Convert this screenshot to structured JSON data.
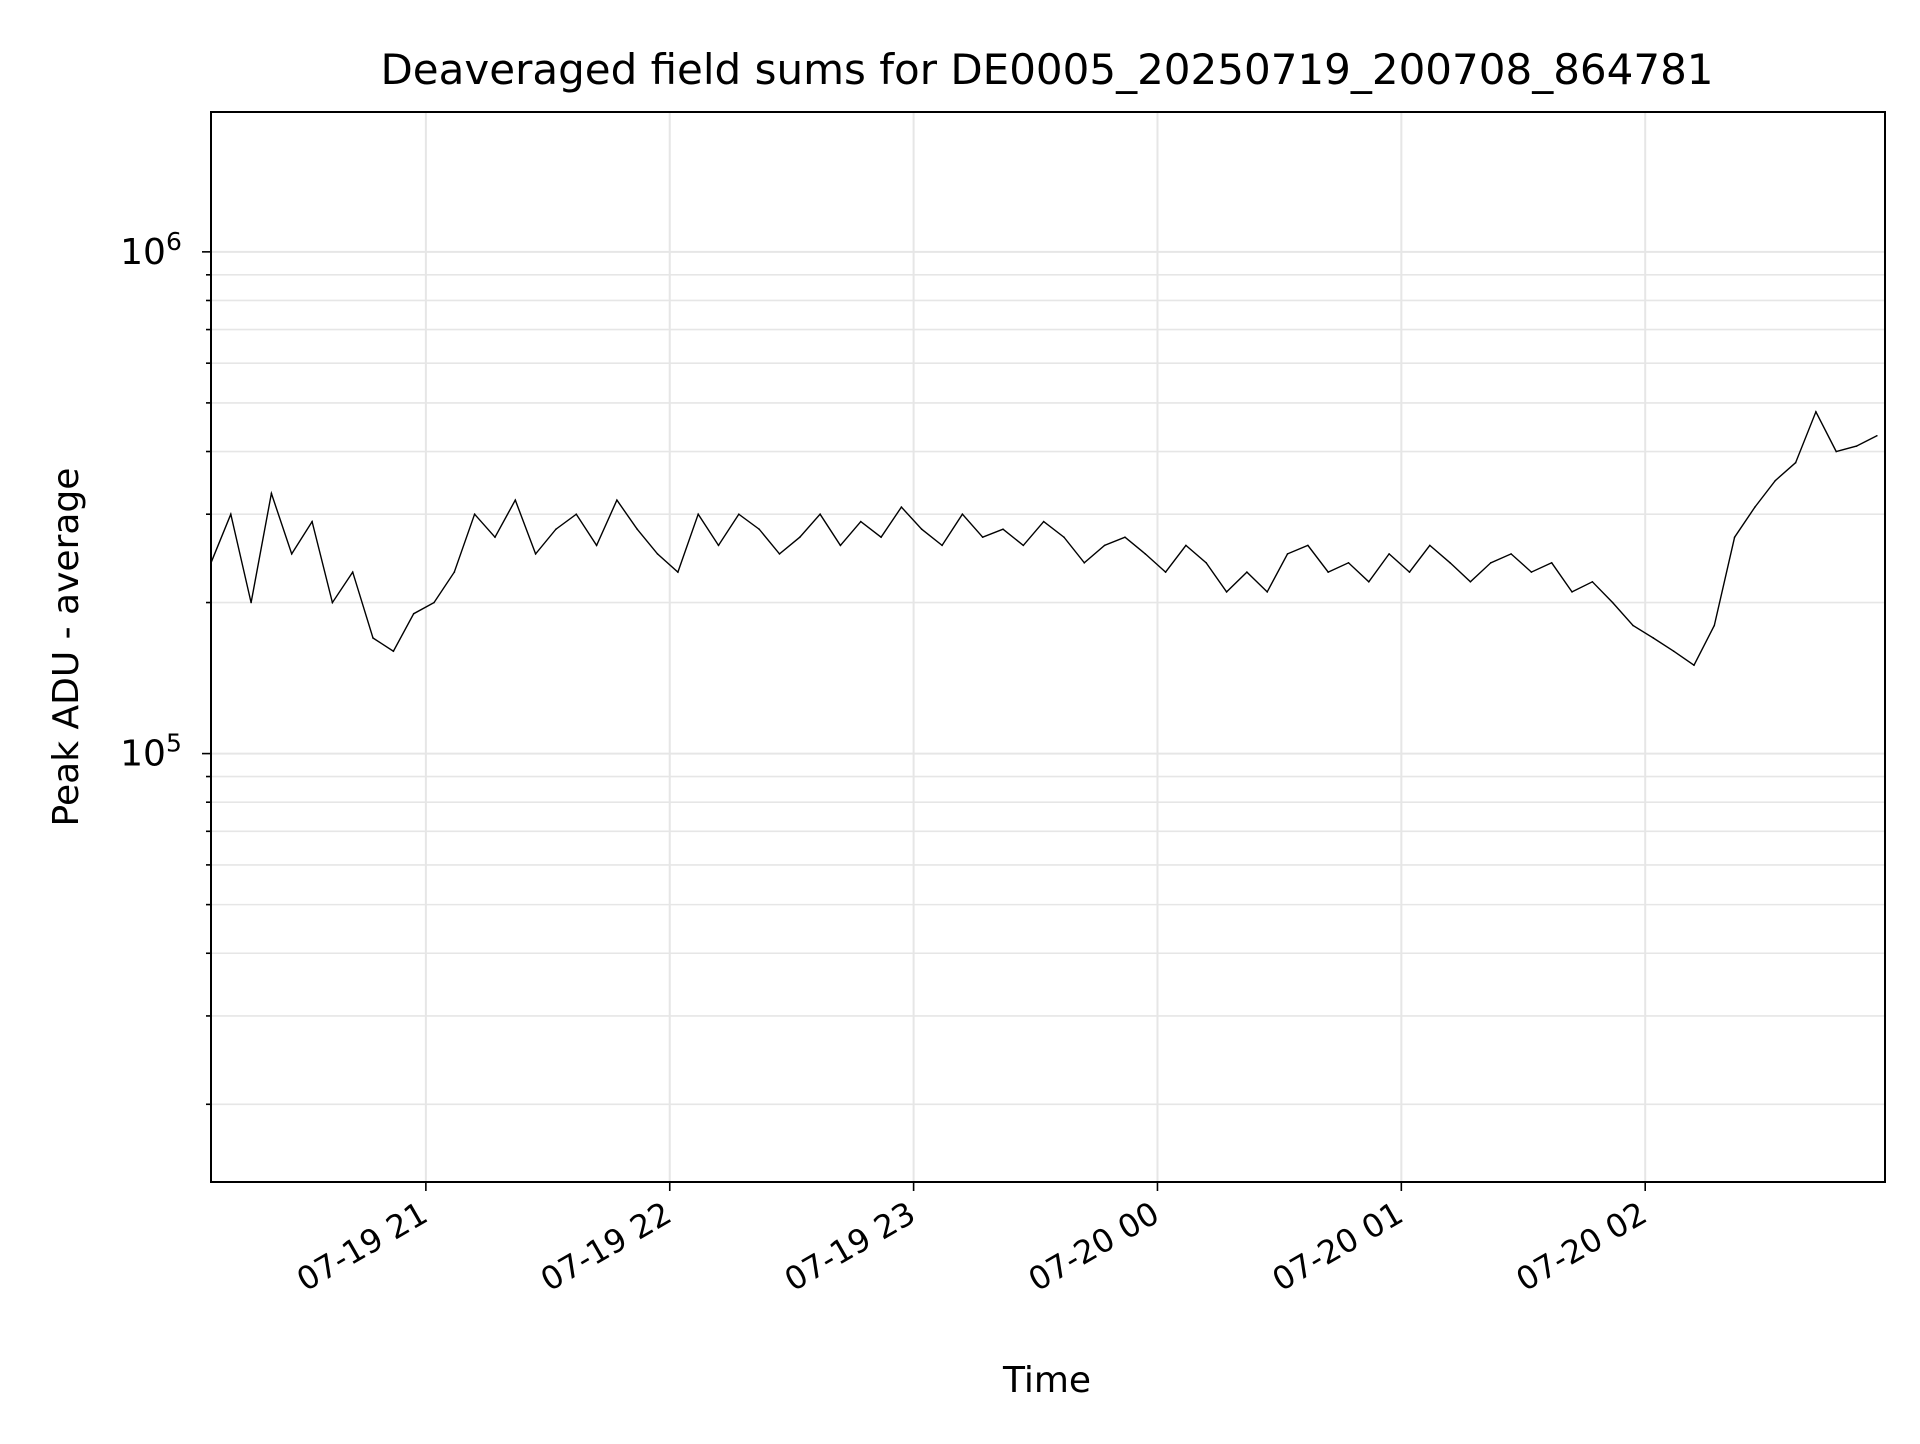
{
  "chart_data": {
    "type": "line",
    "title": "Deaveraged field sums for DE0005_20250719_200708_864781",
    "xlabel": "Time",
    "ylabel": "Peak ADU - average",
    "yscale": "log",
    "xlim": [
      "2025-07-19 20:07:08",
      "2025-07-20 02:59:00"
    ],
    "ylim": [
      14000,
      1900000
    ],
    "grid": true,
    "legend": "none",
    "line_color": "#000000",
    "grid_color": "#e6e6e6",
    "x_ticks": [
      {
        "value": "2025-07-19 21:00",
        "label": "07-19 21"
      },
      {
        "value": "2025-07-19 22:00",
        "label": "07-19 22"
      },
      {
        "value": "2025-07-19 23:00",
        "label": "07-19 23"
      },
      {
        "value": "2025-07-20 00:00",
        "label": "07-20 00"
      },
      {
        "value": "2025-07-20 01:00",
        "label": "07-20 01"
      },
      {
        "value": "2025-07-20 02:00",
        "label": "07-20 02"
      }
    ],
    "y_ticks": [
      {
        "value": 100000,
        "base": "10",
        "exp": "5"
      },
      {
        "value": 1000000,
        "base": "10",
        "exp": "6"
      }
    ],
    "series": [
      {
        "x": [
          "2025-07-19 20:07",
          "2025-07-19 20:12",
          "2025-07-19 20:17",
          "2025-07-19 20:22",
          "2025-07-19 20:27",
          "2025-07-19 20:32",
          "2025-07-19 20:37",
          "2025-07-19 20:42",
          "2025-07-19 20:47",
          "2025-07-19 20:52",
          "2025-07-19 20:57",
          "2025-07-19 21:02",
          "2025-07-19 21:07",
          "2025-07-19 21:12",
          "2025-07-19 21:17",
          "2025-07-19 21:22",
          "2025-07-19 21:27",
          "2025-07-19 21:32",
          "2025-07-19 21:37",
          "2025-07-19 21:42",
          "2025-07-19 21:47",
          "2025-07-19 21:52",
          "2025-07-19 21:57",
          "2025-07-19 22:02",
          "2025-07-19 22:07",
          "2025-07-19 22:12",
          "2025-07-19 22:17",
          "2025-07-19 22:22",
          "2025-07-19 22:27",
          "2025-07-19 22:32",
          "2025-07-19 22:37",
          "2025-07-19 22:42",
          "2025-07-19 22:47",
          "2025-07-19 22:52",
          "2025-07-19 22:57",
          "2025-07-19 23:02",
          "2025-07-19 23:07",
          "2025-07-19 23:12",
          "2025-07-19 23:17",
          "2025-07-19 23:22",
          "2025-07-19 23:27",
          "2025-07-19 23:32",
          "2025-07-19 23:37",
          "2025-07-19 23:42",
          "2025-07-19 23:47",
          "2025-07-19 23:52",
          "2025-07-19 23:57",
          "2025-07-20 00:02",
          "2025-07-20 00:07",
          "2025-07-20 00:12",
          "2025-07-20 00:17",
          "2025-07-20 00:22",
          "2025-07-20 00:27",
          "2025-07-20 00:32",
          "2025-07-20 00:37",
          "2025-07-20 00:42",
          "2025-07-20 00:47",
          "2025-07-20 00:52",
          "2025-07-20 00:57",
          "2025-07-20 01:02",
          "2025-07-20 01:07",
          "2025-07-20 01:12",
          "2025-07-20 01:17",
          "2025-07-20 01:22",
          "2025-07-20 01:27",
          "2025-07-20 01:32",
          "2025-07-20 01:37",
          "2025-07-20 01:42",
          "2025-07-20 01:47",
          "2025-07-20 01:52",
          "2025-07-20 01:57",
          "2025-07-20 02:02",
          "2025-07-20 02:07",
          "2025-07-20 02:12",
          "2025-07-20 02:17",
          "2025-07-20 02:22",
          "2025-07-20 02:27",
          "2025-07-20 02:32",
          "2025-07-20 02:37",
          "2025-07-20 02:42",
          "2025-07-20 02:47",
          "2025-07-20 02:52",
          "2025-07-20 02:57"
        ],
        "values": [
          240000,
          300000,
          200000,
          330000,
          250000,
          290000,
          200000,
          230000,
          170000,
          160000,
          190000,
          200000,
          230000,
          300000,
          270000,
          320000,
          250000,
          280000,
          300000,
          260000,
          320000,
          280000,
          250000,
          230000,
          300000,
          260000,
          300000,
          280000,
          250000,
          270000,
          300000,
          260000,
          290000,
          270000,
          310000,
          280000,
          260000,
          300000,
          270000,
          280000,
          260000,
          290000,
          270000,
          240000,
          260000,
          270000,
          250000,
          230000,
          260000,
          240000,
          210000,
          230000,
          210000,
          250000,
          260000,
          230000,
          240000,
          220000,
          250000,
          230000,
          260000,
          240000,
          220000,
          240000,
          250000,
          230000,
          240000,
          210000,
          220000,
          200000,
          180000,
          170000,
          160000,
          150000,
          180000,
          270000,
          310000,
          350000,
          380000,
          480000,
          400000,
          410000,
          430000
        ]
      }
    ]
  }
}
